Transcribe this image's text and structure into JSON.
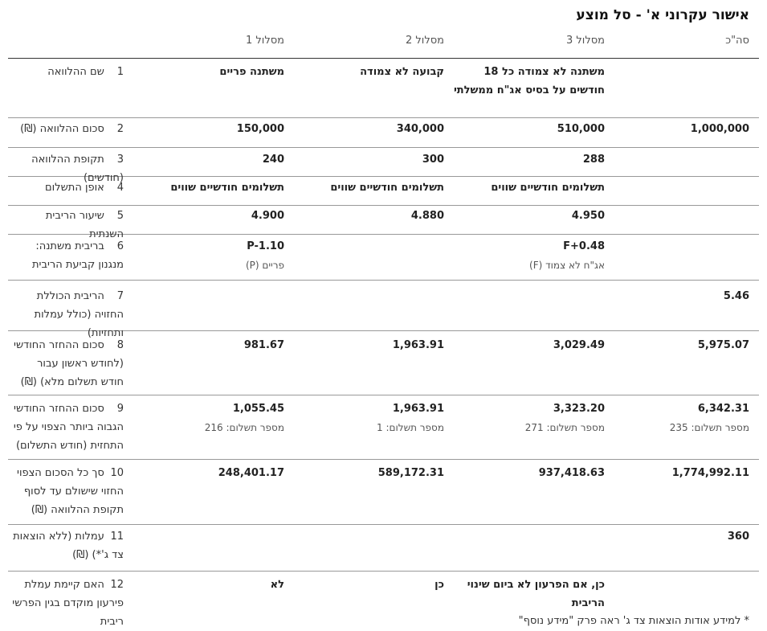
{
  "title": "אישור עקרוני א' - סל מוצע",
  "columns": [
    "מסלול 1",
    "מסלול 2",
    "מסלול 3",
    "סה\"כ"
  ],
  "rows": [
    {
      "num": "1",
      "label": "שם ההלוואה",
      "values": [
        "משתנה פריים",
        "קבועה לא צמודה",
        "משתנה לא צמודה כל 18 חודשים על בסיס אג\"ח ממשלתי",
        ""
      ]
    },
    {
      "num": "2",
      "label": "סכום ההלוואה (₪)",
      "values": [
        "150,000",
        "340,000",
        "510,000",
        "1,000,000"
      ]
    },
    {
      "num": "3",
      "label": "תקופת ההלוואה (חודשים)",
      "values": [
        "240",
        "300",
        "288",
        ""
      ]
    },
    {
      "num": "4",
      "label": "אופן התשלום",
      "values": [
        "תשלומים חודשיים שווים",
        "תשלומים חודשיים שווים",
        "תשלומים חודשיים שווים",
        ""
      ]
    },
    {
      "num": "5",
      "label": "שיעור הריבית השנתית",
      "values": [
        "4.900",
        "4.880",
        "4.950",
        ""
      ]
    },
    {
      "num": "6",
      "label": "בריבית משתנה: מנגנון קביעת הריבית",
      "values": [
        "P-1.10",
        "",
        "F+0.48",
        ""
      ],
      "subs": [
        "פריים (P)",
        "",
        "אג\"ח לא צמוד (F)",
        ""
      ]
    },
    {
      "num": "7",
      "label": "הריבית הכוללת החזויה (כולל עמלות ותחזיות)",
      "values": [
        "",
        "",
        "",
        "5.46"
      ]
    },
    {
      "num": "8",
      "label": "סכום ההחזר החודשי (לחודש ראשון עבור חודש תשלום מלא) (₪)",
      "values": [
        "981.67",
        "1,963.91",
        "3,029.49",
        "5,975.07"
      ]
    },
    {
      "num": "9",
      "label": "סכום ההחזר החודשי הגבוה ביותר הצפוי על פי התחזית (חודש התשלום)",
      "values": [
        "1,055.45",
        "1,963.91",
        "3,323.20",
        "6,342.31"
      ],
      "subs": [
        "מספר תשלום: 216",
        "מספר תשלום: 1",
        "מספר תשלום: 271",
        "מספר תשלום: 235"
      ]
    },
    {
      "num": "10",
      "label": "סך כל הסכום הצפוי החזוי שישולם עד לסוף תקופת ההלוואה (₪)",
      "values": [
        "248,401.17",
        "589,172.31",
        "937,418.63",
        "1,774,992.11"
      ]
    },
    {
      "num": "11",
      "label": "עמלות (ללא הוצאות צד ג'*) (₪)",
      "values": [
        "",
        "",
        "",
        "360"
      ]
    },
    {
      "num": "12",
      "label": "האם קיימת עמלת פירעון מוקדם בגין הפרשי ריבית",
      "values": [
        "לא",
        "כן",
        "כן, אם הפרעון לא ביום שינוי הריבית",
        ""
      ]
    }
  ],
  "footnote": "* למידע אודות הוצאות צד ג' ראה פרק \"מידע נוסף\""
}
